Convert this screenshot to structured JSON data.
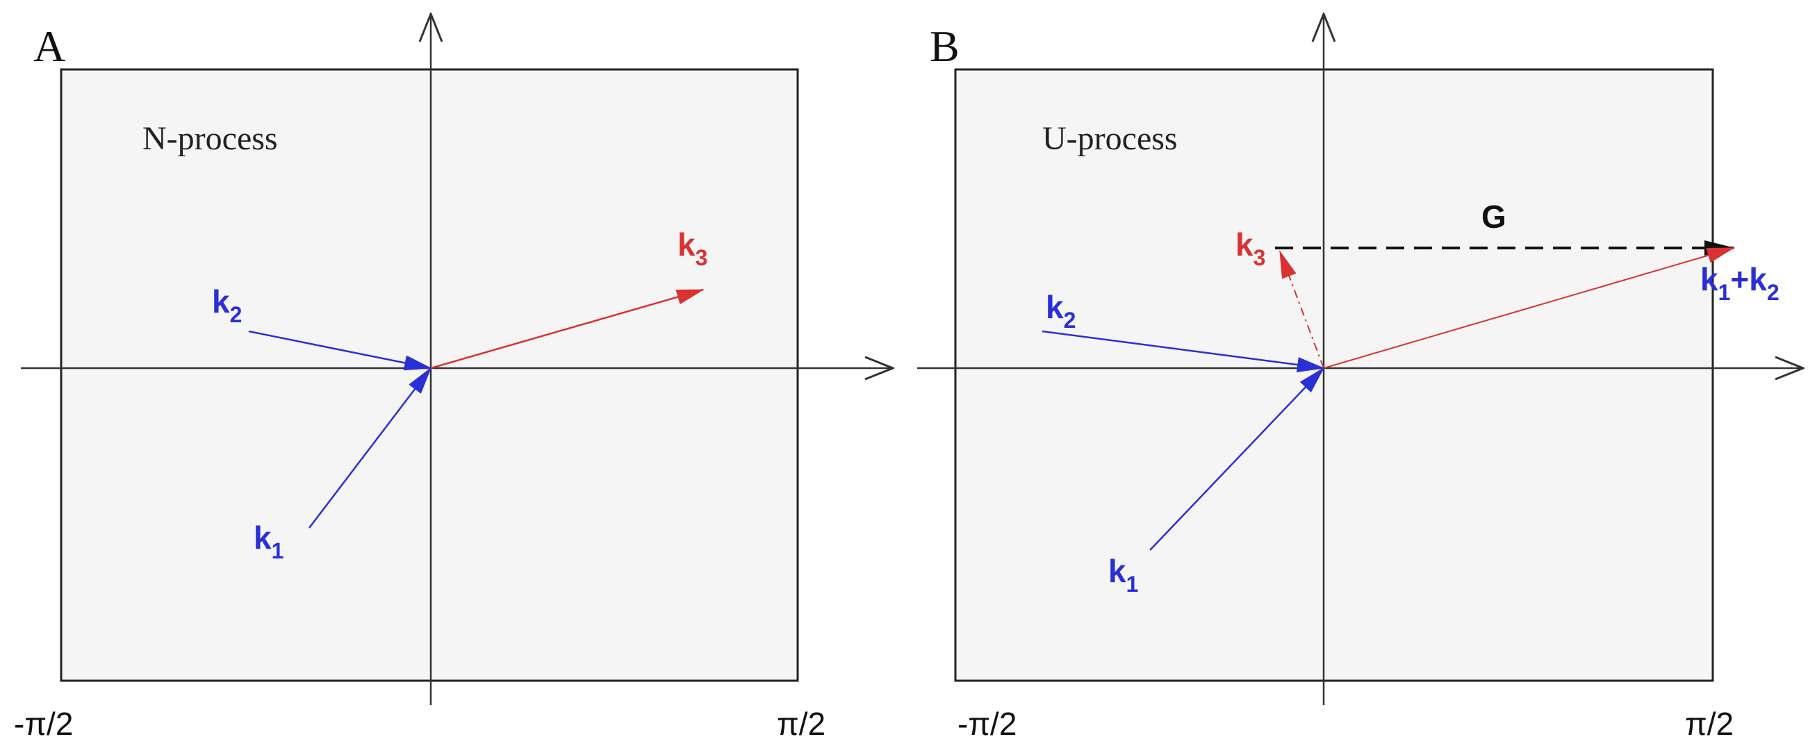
{
  "panels": [
    {
      "id": "A",
      "label": "A",
      "process": "N-process",
      "x_min_label": "-π/2",
      "x_max_label": "π/2",
      "vectors": {
        "k1": {
          "base": "k",
          "sub": "1",
          "color": "#2a2fd6"
        },
        "k2": {
          "base": "k",
          "sub": "2",
          "color": "#2a2fd6"
        },
        "k3": {
          "base": "k",
          "sub": "3",
          "color": "#d93232"
        }
      }
    },
    {
      "id": "B",
      "label": "B",
      "process": "U-process",
      "x_min_label": "-π/2",
      "x_max_label": "π/2",
      "vectors": {
        "k1": {
          "base": "k",
          "sub": "1",
          "color": "#2a2fd6"
        },
        "k2": {
          "base": "k",
          "sub": "2",
          "color": "#2a2fd6"
        },
        "k3": {
          "base": "k",
          "sub": "3",
          "color": "#d93232"
        },
        "G": {
          "base": "G",
          "color": "#111111"
        },
        "k1k2": {
          "text_a": "k",
          "sub_a": "1",
          "plus": "+",
          "text_b": "k",
          "sub_b": "2",
          "color": "#2a2fd6"
        }
      }
    }
  ],
  "colors": {
    "box_fill": "#f5f5f5",
    "box_stroke": "#222222",
    "axis": "#333333",
    "blue": "#2a2fd6",
    "red": "#d93232"
  }
}
